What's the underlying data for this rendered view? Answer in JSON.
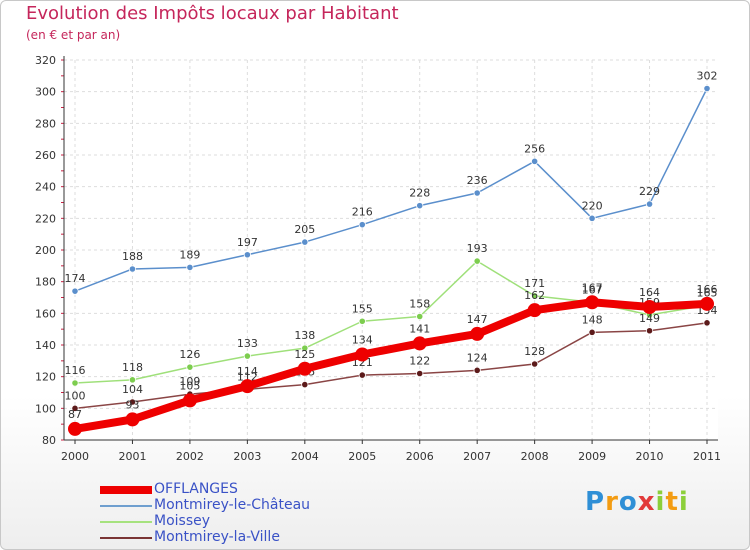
{
  "header": {
    "title": "Evolution des Impôts locaux par Habitant",
    "subtitle": "(en € et par an)"
  },
  "legend": {
    "items": [
      {
        "label": "OFFLANGES",
        "color": "#ee0000",
        "width": "thick"
      },
      {
        "label": "Montmirey-le-Château",
        "color": "#6f9fcf",
        "width": "thin"
      },
      {
        "label": "Moissey",
        "color": "#a6e27e",
        "width": "thin"
      },
      {
        "label": "Montmirey-la-Ville",
        "color": "#7a3434",
        "width": "thin"
      }
    ]
  },
  "logo": {
    "letters": [
      "P",
      "r",
      "o",
      "x",
      "i",
      "t",
      "i"
    ]
  },
  "chart_data": {
    "type": "line",
    "title": "Evolution des Impôts locaux par Habitant",
    "subtitle": "(en € et par an)",
    "x": [
      "2000",
      "2001",
      "2002",
      "2003",
      "2004",
      "2005",
      "2006",
      "2007",
      "2008",
      "2009",
      "2010",
      "2011"
    ],
    "ylim": [
      80,
      320
    ],
    "yticks": [
      80,
      100,
      120,
      140,
      160,
      180,
      200,
      220,
      240,
      260,
      280,
      300,
      320
    ],
    "grid": true,
    "legend_position": "bottom",
    "series": [
      {
        "name": "Montmirey-le-Château",
        "color": "#5b8fcc",
        "point_color": "#5b8fcc",
        "values": [
          174,
          188,
          189,
          197,
          205,
          216,
          228,
          236,
          256,
          220,
          229,
          302
        ]
      },
      {
        "name": "Moissey",
        "color": "#9fe07a",
        "point_color": "#7dcd4f",
        "values": [
          116,
          118,
          126,
          133,
          138,
          155,
          158,
          193,
          171,
          167,
          159,
          165
        ]
      },
      {
        "name": "Montmirey-la-Ville",
        "color": "#8a4545",
        "point_color": "#5c1a1a",
        "values": [
          100,
          104,
          109,
          112,
          115,
          121,
          122,
          124,
          128,
          148,
          149,
          154
        ]
      },
      {
        "name": "OFFLANGES",
        "color": "#ee0000",
        "point_color": "#ee0000",
        "values": [
          87,
          93,
          105,
          114,
          125,
          134,
          141,
          147,
          162,
          167,
          164,
          166
        ]
      }
    ]
  }
}
